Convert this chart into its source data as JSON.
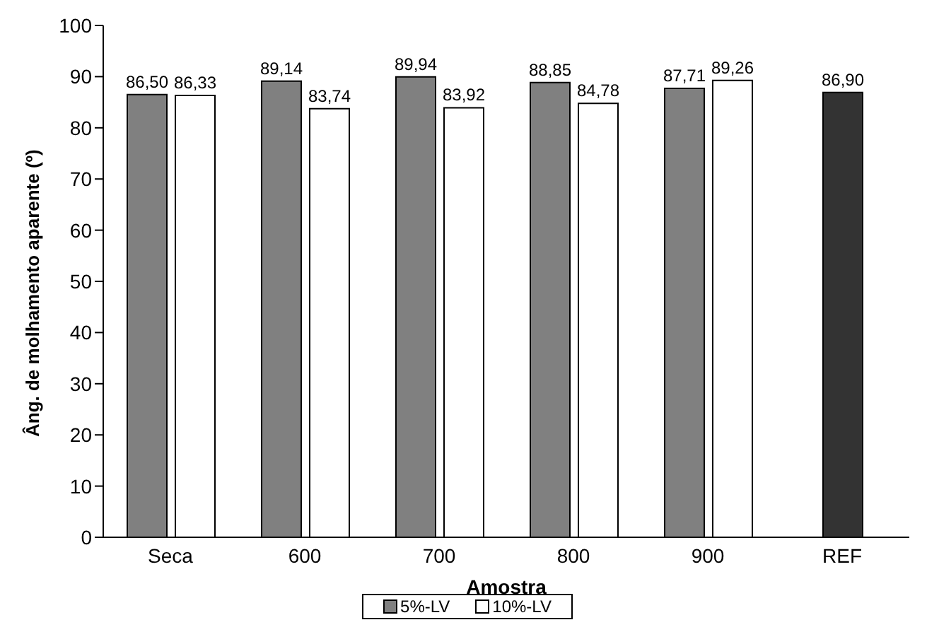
{
  "chart_data": {
    "type": "bar",
    "xlabel": "Amostra",
    "ylabel": "Âng. de molhamento aparente (º)",
    "categories": [
      "Seca",
      "600",
      "700",
      "800",
      "900",
      "REF"
    ],
    "series": [
      {
        "name": "5%-LV",
        "color": "#808080",
        "values": [
          86.5,
          89.14,
          89.94,
          88.85,
          87.71,
          null
        ],
        "value_labels": [
          "86,50",
          "89,14",
          "89,94",
          "88,85",
          "87,71",
          null
        ]
      },
      {
        "name": "10%-LV",
        "color": "#ffffff",
        "values": [
          86.33,
          83.74,
          83.92,
          84.78,
          89.26,
          null
        ],
        "value_labels": [
          "86,33",
          "83,74",
          "83,92",
          "84,78",
          "89,26",
          null
        ]
      },
      {
        "type": "bar",
        "color": "#333333",
        "values": [
          null,
          null,
          null,
          null,
          null,
          86.9
        ],
        "value_labels": [
          null,
          null,
          null,
          null,
          null,
          "86,90"
        ]
      }
    ],
    "ylim": [
      0,
      100
    ],
    "yticks": [
      0,
      10,
      20,
      30,
      40,
      50,
      60,
      70,
      80,
      90,
      100
    ],
    "legend": "bottom"
  }
}
